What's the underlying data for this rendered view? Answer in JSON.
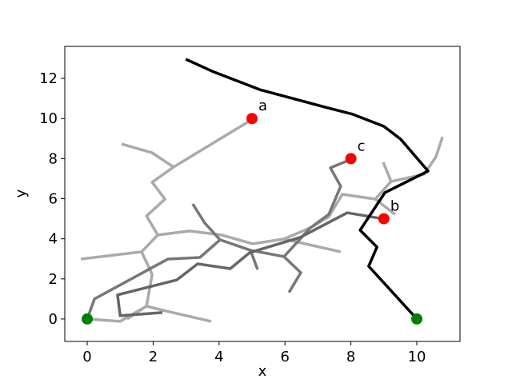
{
  "chart_data": {
    "type": "line",
    "x_label": "x",
    "y_label": "y",
    "xlim": [
      -0.68,
      11.31
    ],
    "ylim": [
      -1.12,
      13.6
    ],
    "xticks": [
      0,
      2,
      4,
      6,
      8,
      10
    ],
    "yticks": [
      0,
      2,
      4,
      6,
      8,
      10,
      12
    ],
    "series": [
      {
        "color": "#aaaaaa",
        "x": [
          5.02,
          2.62,
          1.97,
          2.36,
          1.8,
          2.14,
          1.65,
          1.97,
          1.8,
          1.21
        ],
        "values": [
          9.97,
          7.58,
          6.82,
          5.98,
          5.14,
          4.19,
          3.35,
          2.23,
          0.64,
          0
        ]
      },
      {
        "color": "#aaaaaa",
        "x": [
          1.04,
          1.97,
          2.62
        ],
        "values": [
          8.73,
          8.29,
          7.58
        ]
      },
      {
        "color": "#aaaaaa",
        "x": [
          -0.19,
          1.65
        ],
        "values": [
          2.99,
          3.35
        ]
      },
      {
        "color": "#aaaaaa",
        "x": [
          2.14,
          3.11,
          4.08,
          5.02,
          5.97,
          6.77,
          7.33,
          7.74,
          8.74,
          9.34
        ],
        "values": [
          4.19,
          4.39,
          4.19,
          3.75,
          3.99,
          4.55,
          5.1,
          6.22,
          5.98,
          5.22
        ]
      },
      {
        "color": "#aaaaaa",
        "x": [
          5.97,
          7.69
        ],
        "values": [
          3.99,
          3.35
        ]
      },
      {
        "color": "#aaaaaa",
        "x": [
          8.74,
          9.22,
          8.98
        ],
        "values": [
          5.98,
          6.86,
          7.82
        ]
      },
      {
        "color": "#aaaaaa",
        "x": [
          9.22,
          10.22,
          10.58,
          10.78
        ],
        "values": [
          6.86,
          7.22,
          8.09,
          9.09
        ]
      },
      {
        "color": "#aaaaaa",
        "x": [
          0,
          1.0,
          1.8,
          2.28,
          3.76
        ],
        "values": [
          0,
          -0.12,
          0.64,
          0.44,
          -0.12
        ]
      },
      {
        "color": "#777777",
        "x": [
          0,
          0.22,
          2.45,
          3.42,
          4.03,
          4.95,
          5.97,
          6.77,
          7.33,
          7.69,
          7.38,
          8.01
        ],
        "values": [
          0,
          1.0,
          2.99,
          3.07,
          3.95,
          3.43,
          3.11,
          4.55,
          5.22,
          6.62,
          7.54,
          7.97
        ]
      },
      {
        "color": "#777777",
        "x": [
          4.03,
          3.57,
          3.2
        ],
        "values": [
          3.95,
          4.78,
          5.74
        ]
      },
      {
        "color": "#777777",
        "x": [
          4.95,
          5.17
        ],
        "values": [
          3.43,
          2.47
        ]
      },
      {
        "color": "#777777",
        "x": [
          5.97,
          6.48,
          6.12
        ],
        "values": [
          3.11,
          2.31,
          1.32
        ]
      },
      {
        "color": "#666666",
        "x": [
          9.03,
          7.89,
          6.46,
          4.93,
          4.34,
          3.35,
          2.72,
          0.92,
          1.0,
          2.28
        ],
        "values": [
          4.98,
          5.3,
          4.07,
          3.31,
          2.51,
          2.75,
          1.95,
          1.2,
          0.16,
          0.32
        ]
      },
      {
        "color": "#000000",
        "x": [
          2.99,
          3.79,
          5.24,
          7.21,
          8.06,
          9.0,
          9.51,
          10.34,
          9.03,
          8.28,
          8.79,
          8.54,
          9.03,
          10
        ],
        "values": [
          12.96,
          12.36,
          11.44,
          10.57,
          10.21,
          9.61,
          8.97,
          7.38,
          6.3,
          4.43,
          3.59,
          2.63,
          1.75,
          0
        ]
      }
    ],
    "points": [
      {
        "x": 5,
        "y": 10,
        "color": "#ff0000",
        "label": "a"
      },
      {
        "x": 9,
        "y": 5,
        "color": "#ff0000",
        "label": "b"
      },
      {
        "x": 8,
        "y": 8,
        "color": "#ff0000",
        "label": "c"
      },
      {
        "x": 0,
        "y": 0,
        "color": "#008000"
      },
      {
        "x": 10,
        "y": 0,
        "color": "#008000"
      }
    ]
  }
}
